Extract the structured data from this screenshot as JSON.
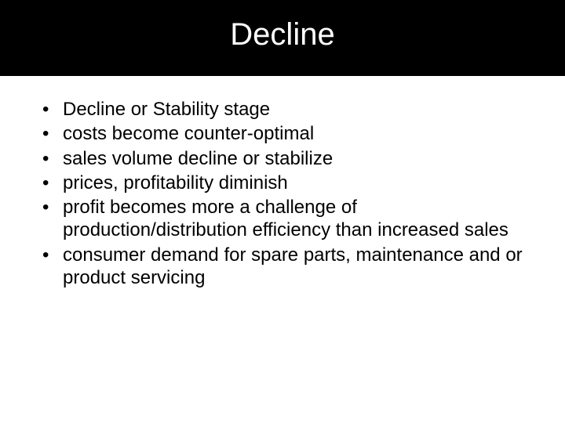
{
  "slide": {
    "title": "Decline",
    "bullets": [
      "Decline or Stability stage",
      "costs become counter-optimal",
      "sales volume decline or stabilize",
      "prices, profitability diminish",
      "profit becomes more a challenge of production/distribution efficiency than increased sales",
      "consumer demand for spare parts, maintenance and or product servicing"
    ],
    "bullet_marker": "•",
    "colors": {
      "header_background": "#000000",
      "title_text": "#ffffff",
      "body_background": "#ffffff",
      "body_text": "#000000"
    },
    "typography": {
      "title_fontsize": 40,
      "body_fontsize": 24,
      "font_family": "Arial"
    }
  }
}
